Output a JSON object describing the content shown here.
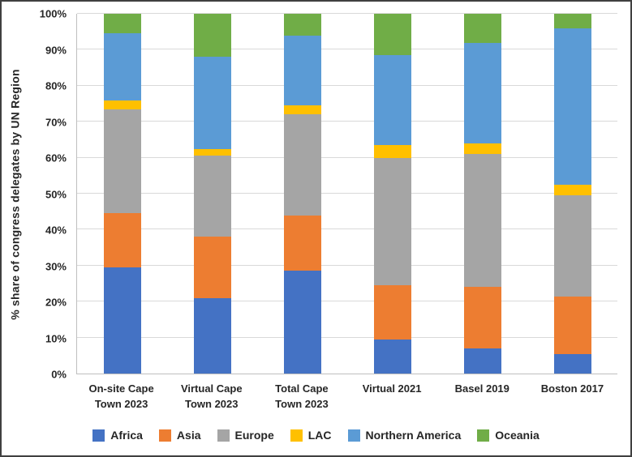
{
  "chart_data": {
    "type": "bar",
    "variant": "stacked-100-percent",
    "title": "",
    "xlabel": "",
    "ylabel": "% share of congress delegates by UN Region",
    "ylim": [
      0,
      100
    ],
    "ytick_step": 10,
    "ytick_suffix": "%",
    "grid": true,
    "legend_position": "bottom",
    "categories": [
      "On-site Cape Town 2023",
      "Virtual Cape Town 2023",
      "Total Cape Town 2023",
      "Virtual 2021",
      "Basel 2019",
      "Boston 2017"
    ],
    "series": [
      {
        "name": "Africa",
        "color": "#4472C4",
        "values": [
          29.5,
          21.0,
          28.5,
          9.5,
          7.0,
          5.5
        ]
      },
      {
        "name": "Asia",
        "color": "#ED7D31",
        "values": [
          15.0,
          17.0,
          15.5,
          15.0,
          17.0,
          16.0
        ]
      },
      {
        "name": "Europe",
        "color": "#A5A5A5",
        "values": [
          29.0,
          22.5,
          28.0,
          35.5,
          37.0,
          28.0
        ]
      },
      {
        "name": "LAC",
        "color": "#FFC000",
        "values": [
          2.5,
          2.0,
          2.5,
          3.5,
          3.0,
          3.0
        ]
      },
      {
        "name": "Northern America",
        "color": "#5B9BD5",
        "values": [
          18.5,
          25.5,
          19.5,
          25.0,
          28.0,
          43.5
        ]
      },
      {
        "name": "Oceania",
        "color": "#70AD47",
        "values": [
          5.5,
          12.0,
          6.0,
          11.5,
          8.0,
          4.0
        ]
      }
    ]
  }
}
